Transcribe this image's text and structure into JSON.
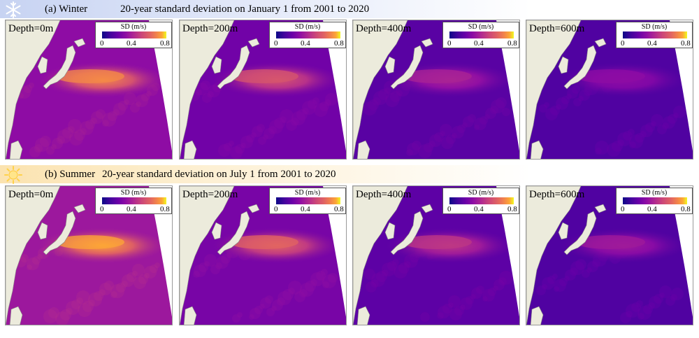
{
  "colorbar": {
    "title": "SD (m/s)",
    "ticks": [
      "0",
      "0.4",
      "0.8"
    ],
    "colormap": "plasma",
    "range": [
      0,
      0.8
    ]
  },
  "rows": [
    {
      "key": "winter",
      "label": "(a) Winter",
      "title": "20-year standard deviation on January 1 from 2001 to 2020",
      "icon": "snowflake-icon",
      "panels": [
        {
          "depth": "Depth=0m",
          "kuroshio_peak": 0.7,
          "background": 0.3
        },
        {
          "depth": "Depth=200m",
          "kuroshio_peak": 0.55,
          "background": 0.22
        },
        {
          "depth": "Depth=400m",
          "kuroshio_peak": 0.38,
          "background": 0.16
        },
        {
          "depth": "Depth=600m",
          "kuroshio_peak": 0.3,
          "background": 0.14
        }
      ]
    },
    {
      "key": "summer",
      "label": "(b) Summer",
      "title": "20-year standard deviation on July 1 from 2001 to 2020",
      "icon": "sun-icon",
      "panels": [
        {
          "depth": "Depth=0m",
          "kuroshio_peak": 0.75,
          "background": 0.34
        },
        {
          "depth": "Depth=200m",
          "kuroshio_peak": 0.6,
          "background": 0.24
        },
        {
          "depth": "Depth=400m",
          "kuroshio_peak": 0.45,
          "background": 0.17
        },
        {
          "depth": "Depth=600m",
          "kuroshio_peak": 0.35,
          "background": 0.14
        }
      ]
    }
  ],
  "chart_data": {
    "type": "heatmap",
    "colorbar_label": "SD (m/s)",
    "value_range": [
      0,
      0.8
    ],
    "rows": [
      "(a) Winter",
      "(b) Summer"
    ],
    "columns": [
      "Depth=0m",
      "Depth=200m",
      "Depth=400m",
      "Depth=600m"
    ],
    "series": [
      {
        "name": "(a) Winter",
        "values": [
          0.7,
          0.55,
          0.38,
          0.3
        ]
      },
      {
        "name": "(b) Summer",
        "values": [
          0.75,
          0.6,
          0.45,
          0.35
        ]
      }
    ]
  }
}
